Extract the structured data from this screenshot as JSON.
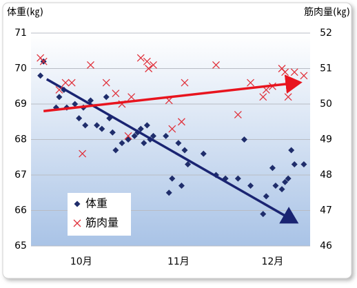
{
  "chart_data": {
    "type": "scatter",
    "y_label": "体重(㎏)",
    "y2_label": "筋肉量(㎏)",
    "xlim": [
      -16,
      73
    ],
    "xticks": [
      {
        "value": 0,
        "label": "10月"
      },
      {
        "value": 31,
        "label": "11月"
      },
      {
        "value": 61,
        "label": "12月"
      }
    ],
    "ylim": [
      65,
      71
    ],
    "yticks": [
      65,
      66,
      67,
      68,
      69,
      70,
      71
    ],
    "y2lim": [
      46,
      52
    ],
    "y2ticks": [
      46,
      47,
      48,
      49,
      50,
      51,
      52
    ],
    "grid": true,
    "legend": "lower left",
    "series": [
      {
        "name": "体重",
        "color": "#1f2d6b",
        "marker": "diamond",
        "x": [
          -13,
          -12,
          -8,
          -7,
          -5.5,
          -4.6,
          -2,
          -0.7,
          0.7,
          1.3,
          3,
          5,
          6.6,
          8,
          9,
          10,
          11,
          13,
          15,
          17,
          18,
          19,
          20,
          21,
          22,
          23,
          27,
          28,
          29,
          31,
          32,
          33,
          34,
          39,
          43,
          46,
          50,
          52,
          54,
          58,
          59,
          61,
          62,
          64,
          65,
          66,
          67,
          68,
          71
        ],
        "values": [
          69.8,
          70.2,
          68.9,
          69.2,
          69.4,
          68.9,
          69.0,
          68.6,
          68.9,
          68.4,
          69.1,
          68.4,
          68.3,
          69.2,
          68.6,
          68.2,
          67.7,
          67.9,
          68.0,
          68.1,
          68.2,
          68.3,
          67.9,
          68.4,
          68.0,
          68.1,
          68.1,
          66.5,
          66.9,
          67.9,
          66.7,
          67.7,
          67.3,
          67.6,
          67.0,
          66.9,
          66.9,
          68.0,
          66.7,
          65.9,
          66.4,
          67.2,
          66.7,
          66.6,
          66.8,
          66.9,
          67.7,
          67.3,
          67.3
        ],
        "trend": {
          "x": [
            -11,
            68
          ],
          "values": [
            69.7,
            65.7
          ],
          "color": "#1a2472"
        }
      },
      {
        "name": "筋肉量",
        "color": "#e0303a",
        "marker": "x",
        "axis": "y2",
        "x": [
          -13,
          -12,
          -7,
          -5,
          -3,
          0.4,
          3,
          8,
          11,
          13,
          15,
          16,
          19,
          21,
          21.5,
          23,
          28,
          29,
          32,
          33,
          43,
          50,
          54,
          58,
          59,
          61,
          64,
          65,
          66,
          68,
          71
        ],
        "values": [
          51.3,
          51.2,
          50.4,
          50.6,
          50.6,
          48.6,
          51.1,
          50.6,
          50.3,
          50.0,
          49.1,
          50.2,
          51.3,
          51.2,
          51.0,
          51.1,
          50.1,
          49.3,
          49.5,
          50.6,
          51.1,
          49.7,
          50.6,
          50.2,
          50.4,
          50.5,
          51.0,
          50.9,
          50.2,
          50.9,
          50.8
        ],
        "trend": {
          "x": [
            -12,
            69
          ],
          "values": [
            49.8,
            50.6
          ],
          "color": "#e8141e"
        }
      }
    ]
  }
}
